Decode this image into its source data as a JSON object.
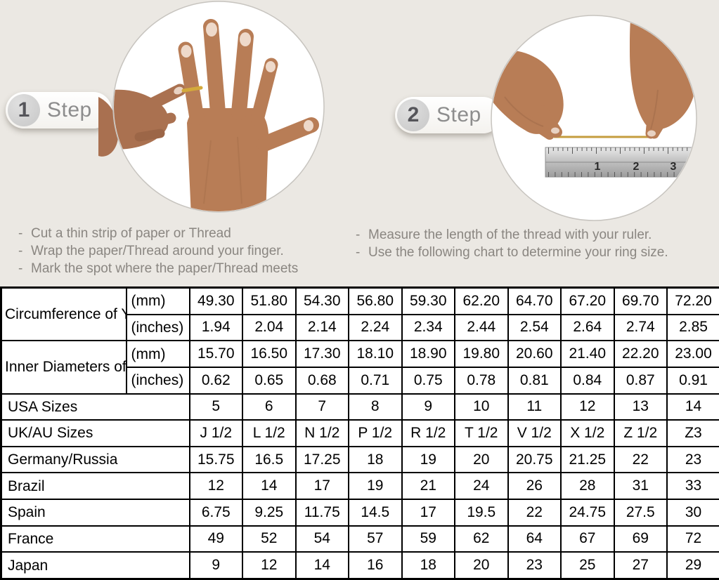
{
  "colors": {
    "page_background": "#ebe8e3",
    "table_shaded_cell": "#d9d9d9",
    "thread_gold": "#c59d3e"
  },
  "steps": {
    "bullet_char": "-",
    "step1": {
      "number": "1",
      "label": "Step",
      "instructions": [
        "Cut a thin strip of paper or Thread",
        "Wrap the paper/Thread around your finger.",
        "Mark the spot where the paper/Thread meets"
      ]
    },
    "step2": {
      "number": "2",
      "label": "Step",
      "instructions": [
        "Measure the length of the thread with your ruler.",
        "Use the following chart to determine your ring size."
      ],
      "ruler_numbers": [
        "1",
        "2",
        "3"
      ]
    }
  },
  "size_chart": {
    "sections": [
      {
        "label": "Circumference of Your Finger",
        "sub_rows": [
          {
            "unit": "(mm)",
            "shaded": true,
            "values": [
              "49.30",
              "51.80",
              "54.30",
              "56.80",
              "59.30",
              "62.20",
              "64.70",
              "67.20",
              "69.70",
              "72.20"
            ]
          },
          {
            "unit": "(inches)",
            "shaded": false,
            "values": [
              "1.94",
              "2.04",
              "2.14",
              "2.24",
              "2.34",
              "2.44",
              "2.54",
              "2.64",
              "2.74",
              "2.85"
            ]
          }
        ]
      },
      {
        "label": "Inner Diameters of Rings",
        "sub_rows": [
          {
            "unit": "(mm)",
            "shaded": false,
            "values": [
              "15.70",
              "16.50",
              "17.30",
              "18.10",
              "18.90",
              "19.80",
              "20.60",
              "21.40",
              "22.20",
              "23.00"
            ]
          },
          {
            "unit": "(inches)",
            "shaded": false,
            "values": [
              "0.62",
              "0.65",
              "0.68",
              "0.71",
              "0.75",
              "0.78",
              "0.81",
              "0.84",
              "0.87",
              "0.91"
            ]
          }
        ]
      },
      {
        "label": "USA Sizes",
        "shaded": true,
        "values": [
          "5",
          "6",
          "7",
          "8",
          "9",
          "10",
          "11",
          "12",
          "13",
          "14"
        ]
      },
      {
        "label": "UK/AU Sizes",
        "shaded": false,
        "values": [
          "J 1/2",
          "L 1/2",
          "N 1/2",
          "P 1/2",
          "R 1/2",
          "T 1/2",
          "V 1/2",
          "X 1/2",
          "Z 1/2",
          "Z3"
        ]
      },
      {
        "label": "Germany/Russia",
        "shaded": false,
        "values": [
          "15.75",
          "16.5",
          "17.25",
          "18",
          "19",
          "20",
          "20.75",
          "21.25",
          "22",
          "23"
        ]
      },
      {
        "label": "Brazil",
        "shaded": false,
        "values": [
          "12",
          "14",
          "17",
          "19",
          "21",
          "24",
          "26",
          "28",
          "31",
          "33"
        ]
      },
      {
        "label": "Spain",
        "shaded": false,
        "values": [
          "6.75",
          "9.25",
          "11.75",
          "14.5",
          "17",
          "19.5",
          "22",
          "24.75",
          "27.5",
          "30"
        ]
      },
      {
        "label": "France",
        "shaded": false,
        "values": [
          "49",
          "52",
          "54",
          "57",
          "59",
          "62",
          "64",
          "67",
          "69",
          "72"
        ]
      },
      {
        "label": "Japan",
        "shaded": false,
        "values": [
          "9",
          "12",
          "14",
          "16",
          "18",
          "20",
          "23",
          "25",
          "27",
          "29"
        ]
      }
    ]
  }
}
